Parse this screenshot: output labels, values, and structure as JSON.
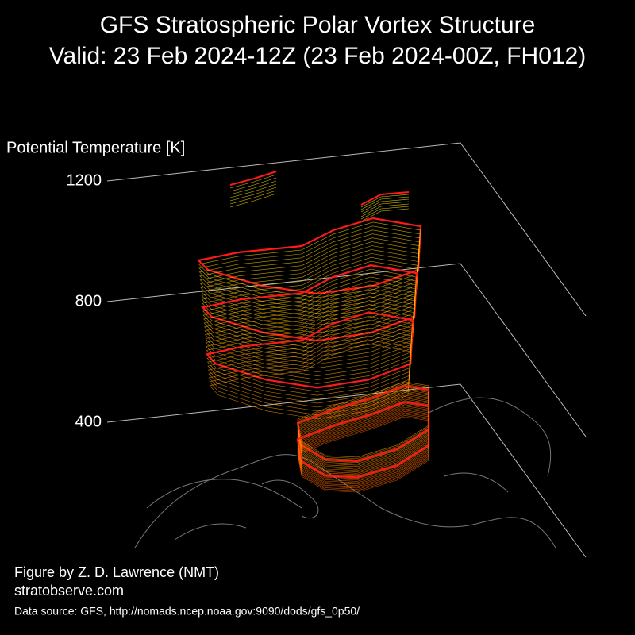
{
  "chart_data": {
    "type": "vortex3d",
    "title": "GFS Stratospheric Polar Vortex Structure",
    "subtitle": "Valid: 23 Feb 2024-12Z  (23 Feb 2024-00Z, FH012)",
    "z_label": "Potential Temperature [K]",
    "zticks": [
      400,
      800,
      1200
    ],
    "credit": "Figure by Z. D. Lawrence (NMT)",
    "website": "stratobserve.com",
    "source": "Data source: GFS, http://nomads.ncep.noaa.gov:9090/dods/gfs_0p50/"
  }
}
